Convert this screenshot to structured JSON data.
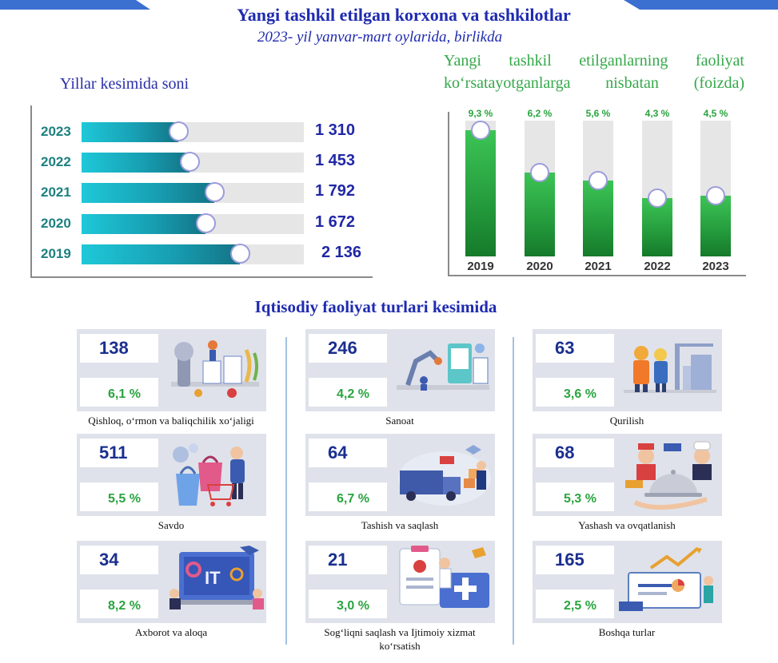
{
  "title": "Yangi tashkil etilgan korxona va tashkilotlar",
  "subtitle": "2023- yil yanvar-mart oylarida, birlikda",
  "colors": {
    "title": "#1f2bb0",
    "bar_teal": "#18a0b4",
    "bar_green": "#249a3c",
    "pct_green": "#2aa43f",
    "track": "#e6e6e6",
    "card_bg": "#dfe2ea"
  },
  "chart_data": [
    {
      "type": "bar",
      "orientation": "horizontal",
      "title": "Yillar kesimida soni",
      "categories": [
        "2023",
        "2022",
        "2021",
        "2020",
        "2019"
      ],
      "values": [
        1310,
        1453,
        1792,
        1672,
        2136
      ],
      "value_labels": [
        "1 310",
        "1 453",
        "1 792",
        "1 672",
        "2 136"
      ],
      "xlim": [
        0,
        3000
      ]
    },
    {
      "type": "bar",
      "orientation": "vertical",
      "title": "Yangi tashkil etilganlarning faoliyat ko‘rsatayotganlarga nisbatan (foizda)",
      "categories": [
        "2019",
        "2020",
        "2021",
        "2022",
        "2023"
      ],
      "values": [
        9.3,
        6.2,
        5.6,
        4.3,
        4.5
      ],
      "value_labels": [
        "9,3 %",
        "6,2 %",
        "5,6 %",
        "4,3 %",
        "4,5 %"
      ],
      "ylim": [
        0,
        10
      ]
    }
  ],
  "sectors_title": "Iqtisodiy faoliyat turlari kesimida",
  "sectors": [
    {
      "count": "138",
      "pct": "6,1 %",
      "label": "Qishloq, o‘rmon va baliqchilik xo‘jaligi",
      "icon": "agriculture-icon"
    },
    {
      "count": "246",
      "pct": "4,2 %",
      "label": "Sanoat",
      "icon": "industry-icon"
    },
    {
      "count": "63",
      "pct": "3,6 %",
      "label": "Qurilish",
      "icon": "construction-icon"
    },
    {
      "count": "511",
      "pct": "5,5 %",
      "label": "Savdo",
      "icon": "shopping-icon"
    },
    {
      "count": "64",
      "pct": "6,7 %",
      "label": "Tashish va saqlash",
      "icon": "logistics-icon"
    },
    {
      "count": "68",
      "pct": "5,3 %",
      "label": "Yashash va ovqatlanish",
      "icon": "hotel-food-icon"
    },
    {
      "count": "34",
      "pct": "8,2 %",
      "label": "Axborot va aloqa",
      "icon": "it-icon"
    },
    {
      "count": "21",
      "pct": "3,0 %",
      "label": "Sog‘liqni saqlash va Ijtimoiy xizmat ko‘rsatish",
      "icon": "medical-icon"
    },
    {
      "count": "165",
      "pct": "2,5 %",
      "label": "Boshqa turlar",
      "icon": "analytics-icon"
    }
  ]
}
